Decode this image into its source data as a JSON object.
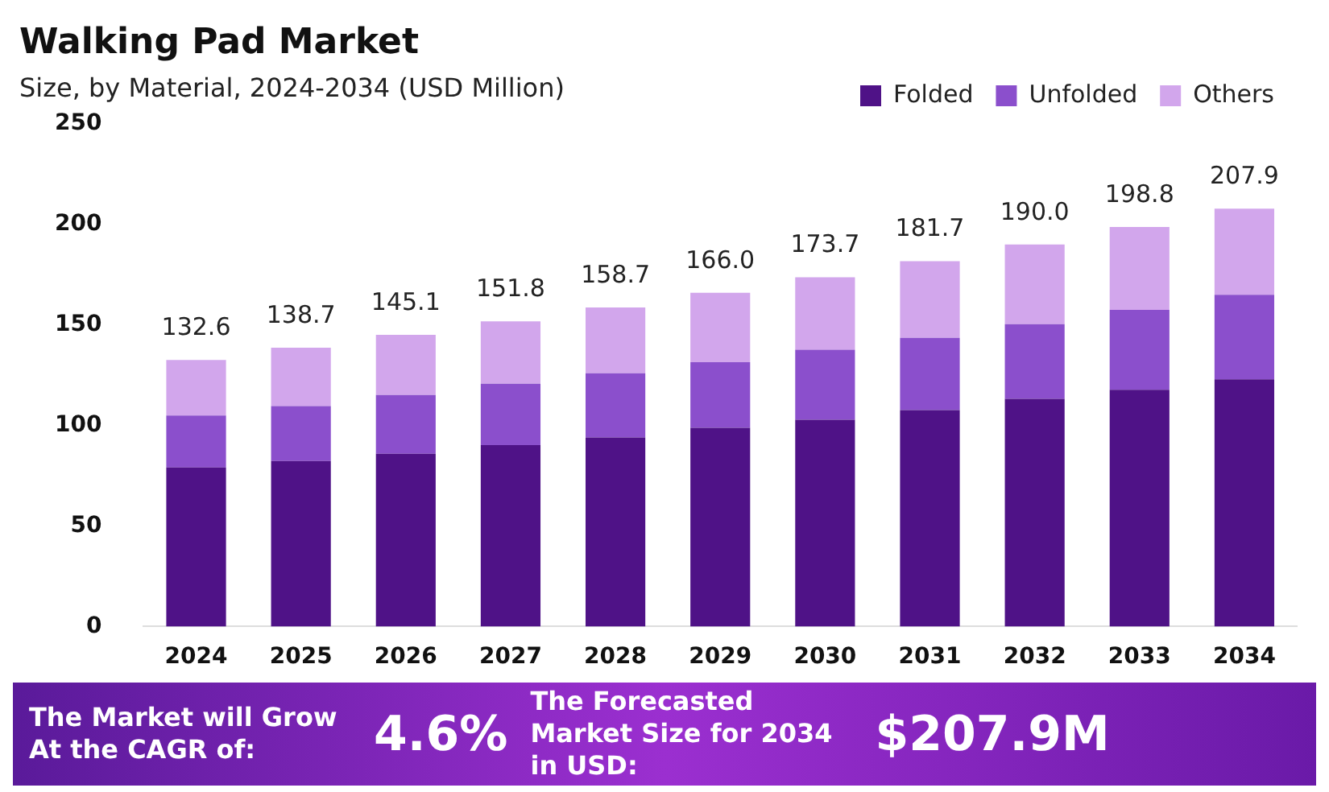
{
  "chart_data": {
    "type": "bar",
    "title": "Walking Pad Market",
    "subtitle": "Size, by Material, 2024-2034 (USD Million)",
    "categories": [
      "2024",
      "2025",
      "2026",
      "2027",
      "2028",
      "2029",
      "2030",
      "2031",
      "2032",
      "2033",
      "2034"
    ],
    "stacked": true,
    "series": [
      {
        "name": "Folded",
        "color": "#4f1287",
        "values": [
          79.1,
          82.3,
          85.9,
          90.2,
          94.1,
          98.9,
          102.9,
          107.7,
          113.3,
          117.8,
          123.0
        ]
      },
      {
        "name": "Unfolded",
        "color": "#8b4fcc",
        "values": [
          25.9,
          27.4,
          29.3,
          30.6,
          31.9,
          32.6,
          34.8,
          35.9,
          37.1,
          39.7,
          42.0
        ]
      },
      {
        "name": "Others",
        "color": "#d2a6ec",
        "values": [
          27.6,
          29.0,
          29.9,
          31.0,
          32.7,
          34.5,
          36.0,
          38.1,
          39.6,
          41.3,
          42.9
        ]
      }
    ],
    "totals": [
      "132.6",
      "138.7",
      "145.1",
      "151.8",
      "158.7",
      "166.0",
      "173.7",
      "181.7",
      "190.0",
      "198.8",
      "207.9"
    ],
    "ylim": [
      0,
      250
    ],
    "yticks": [
      0,
      50,
      100,
      150,
      200,
      250
    ],
    "legend": "top right",
    "annotations": [
      "The Market will Grow At the CAGR of:",
      "4.6%",
      "The Forecasted Market Size for 2034 in USD:",
      "$207.9M"
    ]
  }
}
